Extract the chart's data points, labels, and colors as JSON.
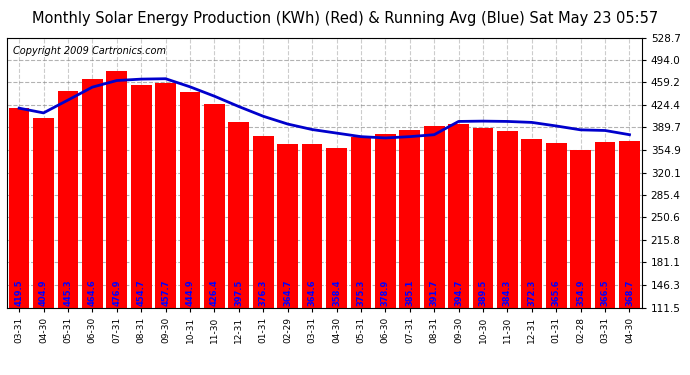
{
  "title": "Monthly Solar Energy Production (KWh) (Red) & Running Avg (Blue) Sat May 23 05:57",
  "copyright": "Copyright 2009 Cartronics.com",
  "categories": [
    "03-31",
    "04-30",
    "05-31",
    "06-30",
    "07-31",
    "08-31",
    "09-30",
    "10-31",
    "11-30",
    "12-31",
    "01-31",
    "02-29",
    "03-31",
    "04-30",
    "05-31",
    "06-30",
    "07-31",
    "08-31",
    "09-30",
    "10-30",
    "11-30",
    "12-31",
    "01-31",
    "02-28",
    "03-31",
    "04-30"
  ],
  "bar_values": [
    419.5,
    404.9,
    445.3,
    464.6,
    476.9,
    454.7,
    457.7,
    444.9,
    426.4,
    397.5,
    376.3,
    364.7,
    364.6,
    358.4,
    375.3,
    378.9,
    385.1,
    391.7,
    394.7,
    389.5,
    384.3,
    372.3,
    365.6,
    354.9,
    366.5,
    368.7
  ],
  "running_avg": [
    419.5,
    412.2,
    432.0,
    452.0,
    462.2,
    464.4,
    465.0,
    452.5,
    438.0,
    422.0,
    407.0,
    395.0,
    386.5,
    381.0,
    375.5,
    373.5,
    375.5,
    378.5,
    399.0,
    399.5,
    399.0,
    397.5,
    392.0,
    386.0,
    385.0,
    378.5
  ],
  "bar_color": "#ff0000",
  "line_color": "#0000cc",
  "bg_color": "#ffffff",
  "plot_bg_color": "#ffffff",
  "ytick_labels": [
    "111.5",
    "146.3",
    "181.1",
    "215.8",
    "250.6",
    "285.4",
    "320.1",
    "354.9",
    "389.7",
    "424.4",
    "459.2",
    "494.0",
    "528.7"
  ],
  "ytick_values": [
    111.5,
    146.3,
    181.1,
    215.8,
    250.6,
    285.4,
    320.1,
    354.9,
    389.7,
    424.4,
    459.2,
    494.0,
    528.7
  ],
  "ymin": 111.5,
  "ymax": 528.7,
  "title_fontsize": 10.5,
  "copyright_fontsize": 7,
  "label_fontsize": 6.0,
  "bar_bottom": 111.5
}
